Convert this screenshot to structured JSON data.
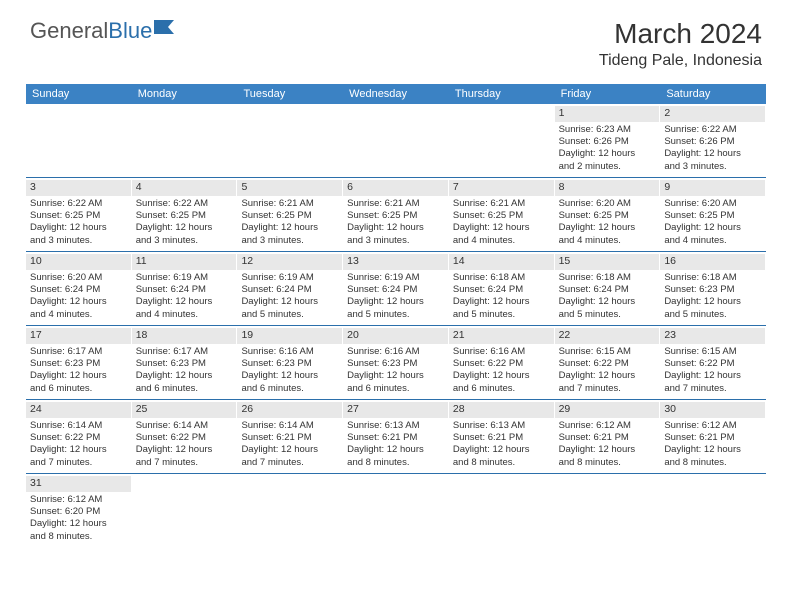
{
  "logo": {
    "text1": "General",
    "text2": "Blue"
  },
  "title": "March 2024",
  "location": "Tideng Pale, Indonesia",
  "colors": {
    "header_bg": "#3b82c4",
    "header_text": "#ffffff",
    "row_divider": "#2b6fab",
    "daynum_bg": "#e8e8e8",
    "text": "#333333",
    "logo_gray": "#555555",
    "logo_blue": "#2b6fab"
  },
  "day_names": [
    "Sunday",
    "Monday",
    "Tuesday",
    "Wednesday",
    "Thursday",
    "Friday",
    "Saturday"
  ],
  "weeks": [
    [
      {
        "n": "",
        "sr": "",
        "ss": "",
        "dl1": "",
        "dl2": ""
      },
      {
        "n": "",
        "sr": "",
        "ss": "",
        "dl1": "",
        "dl2": ""
      },
      {
        "n": "",
        "sr": "",
        "ss": "",
        "dl1": "",
        "dl2": ""
      },
      {
        "n": "",
        "sr": "",
        "ss": "",
        "dl1": "",
        "dl2": ""
      },
      {
        "n": "",
        "sr": "",
        "ss": "",
        "dl1": "",
        "dl2": ""
      },
      {
        "n": "1",
        "sr": "Sunrise: 6:23 AM",
        "ss": "Sunset: 6:26 PM",
        "dl1": "Daylight: 12 hours",
        "dl2": "and 2 minutes."
      },
      {
        "n": "2",
        "sr": "Sunrise: 6:22 AM",
        "ss": "Sunset: 6:26 PM",
        "dl1": "Daylight: 12 hours",
        "dl2": "and 3 minutes."
      }
    ],
    [
      {
        "n": "3",
        "sr": "Sunrise: 6:22 AM",
        "ss": "Sunset: 6:25 PM",
        "dl1": "Daylight: 12 hours",
        "dl2": "and 3 minutes."
      },
      {
        "n": "4",
        "sr": "Sunrise: 6:22 AM",
        "ss": "Sunset: 6:25 PM",
        "dl1": "Daylight: 12 hours",
        "dl2": "and 3 minutes."
      },
      {
        "n": "5",
        "sr": "Sunrise: 6:21 AM",
        "ss": "Sunset: 6:25 PM",
        "dl1": "Daylight: 12 hours",
        "dl2": "and 3 minutes."
      },
      {
        "n": "6",
        "sr": "Sunrise: 6:21 AM",
        "ss": "Sunset: 6:25 PM",
        "dl1": "Daylight: 12 hours",
        "dl2": "and 3 minutes."
      },
      {
        "n": "7",
        "sr": "Sunrise: 6:21 AM",
        "ss": "Sunset: 6:25 PM",
        "dl1": "Daylight: 12 hours",
        "dl2": "and 4 minutes."
      },
      {
        "n": "8",
        "sr": "Sunrise: 6:20 AM",
        "ss": "Sunset: 6:25 PM",
        "dl1": "Daylight: 12 hours",
        "dl2": "and 4 minutes."
      },
      {
        "n": "9",
        "sr": "Sunrise: 6:20 AM",
        "ss": "Sunset: 6:25 PM",
        "dl1": "Daylight: 12 hours",
        "dl2": "and 4 minutes."
      }
    ],
    [
      {
        "n": "10",
        "sr": "Sunrise: 6:20 AM",
        "ss": "Sunset: 6:24 PM",
        "dl1": "Daylight: 12 hours",
        "dl2": "and 4 minutes."
      },
      {
        "n": "11",
        "sr": "Sunrise: 6:19 AM",
        "ss": "Sunset: 6:24 PM",
        "dl1": "Daylight: 12 hours",
        "dl2": "and 4 minutes."
      },
      {
        "n": "12",
        "sr": "Sunrise: 6:19 AM",
        "ss": "Sunset: 6:24 PM",
        "dl1": "Daylight: 12 hours",
        "dl2": "and 5 minutes."
      },
      {
        "n": "13",
        "sr": "Sunrise: 6:19 AM",
        "ss": "Sunset: 6:24 PM",
        "dl1": "Daylight: 12 hours",
        "dl2": "and 5 minutes."
      },
      {
        "n": "14",
        "sr": "Sunrise: 6:18 AM",
        "ss": "Sunset: 6:24 PM",
        "dl1": "Daylight: 12 hours",
        "dl2": "and 5 minutes."
      },
      {
        "n": "15",
        "sr": "Sunrise: 6:18 AM",
        "ss": "Sunset: 6:24 PM",
        "dl1": "Daylight: 12 hours",
        "dl2": "and 5 minutes."
      },
      {
        "n": "16",
        "sr": "Sunrise: 6:18 AM",
        "ss": "Sunset: 6:23 PM",
        "dl1": "Daylight: 12 hours",
        "dl2": "and 5 minutes."
      }
    ],
    [
      {
        "n": "17",
        "sr": "Sunrise: 6:17 AM",
        "ss": "Sunset: 6:23 PM",
        "dl1": "Daylight: 12 hours",
        "dl2": "and 6 minutes."
      },
      {
        "n": "18",
        "sr": "Sunrise: 6:17 AM",
        "ss": "Sunset: 6:23 PM",
        "dl1": "Daylight: 12 hours",
        "dl2": "and 6 minutes."
      },
      {
        "n": "19",
        "sr": "Sunrise: 6:16 AM",
        "ss": "Sunset: 6:23 PM",
        "dl1": "Daylight: 12 hours",
        "dl2": "and 6 minutes."
      },
      {
        "n": "20",
        "sr": "Sunrise: 6:16 AM",
        "ss": "Sunset: 6:23 PM",
        "dl1": "Daylight: 12 hours",
        "dl2": "and 6 minutes."
      },
      {
        "n": "21",
        "sr": "Sunrise: 6:16 AM",
        "ss": "Sunset: 6:22 PM",
        "dl1": "Daylight: 12 hours",
        "dl2": "and 6 minutes."
      },
      {
        "n": "22",
        "sr": "Sunrise: 6:15 AM",
        "ss": "Sunset: 6:22 PM",
        "dl1": "Daylight: 12 hours",
        "dl2": "and 7 minutes."
      },
      {
        "n": "23",
        "sr": "Sunrise: 6:15 AM",
        "ss": "Sunset: 6:22 PM",
        "dl1": "Daylight: 12 hours",
        "dl2": "and 7 minutes."
      }
    ],
    [
      {
        "n": "24",
        "sr": "Sunrise: 6:14 AM",
        "ss": "Sunset: 6:22 PM",
        "dl1": "Daylight: 12 hours",
        "dl2": "and 7 minutes."
      },
      {
        "n": "25",
        "sr": "Sunrise: 6:14 AM",
        "ss": "Sunset: 6:22 PM",
        "dl1": "Daylight: 12 hours",
        "dl2": "and 7 minutes."
      },
      {
        "n": "26",
        "sr": "Sunrise: 6:14 AM",
        "ss": "Sunset: 6:21 PM",
        "dl1": "Daylight: 12 hours",
        "dl2": "and 7 minutes."
      },
      {
        "n": "27",
        "sr": "Sunrise: 6:13 AM",
        "ss": "Sunset: 6:21 PM",
        "dl1": "Daylight: 12 hours",
        "dl2": "and 8 minutes."
      },
      {
        "n": "28",
        "sr": "Sunrise: 6:13 AM",
        "ss": "Sunset: 6:21 PM",
        "dl1": "Daylight: 12 hours",
        "dl2": "and 8 minutes."
      },
      {
        "n": "29",
        "sr": "Sunrise: 6:12 AM",
        "ss": "Sunset: 6:21 PM",
        "dl1": "Daylight: 12 hours",
        "dl2": "and 8 minutes."
      },
      {
        "n": "30",
        "sr": "Sunrise: 6:12 AM",
        "ss": "Sunset: 6:21 PM",
        "dl1": "Daylight: 12 hours",
        "dl2": "and 8 minutes."
      }
    ],
    [
      {
        "n": "31",
        "sr": "Sunrise: 6:12 AM",
        "ss": "Sunset: 6:20 PM",
        "dl1": "Daylight: 12 hours",
        "dl2": "and 8 minutes."
      },
      {
        "n": "",
        "sr": "",
        "ss": "",
        "dl1": "",
        "dl2": ""
      },
      {
        "n": "",
        "sr": "",
        "ss": "",
        "dl1": "",
        "dl2": ""
      },
      {
        "n": "",
        "sr": "",
        "ss": "",
        "dl1": "",
        "dl2": ""
      },
      {
        "n": "",
        "sr": "",
        "ss": "",
        "dl1": "",
        "dl2": ""
      },
      {
        "n": "",
        "sr": "",
        "ss": "",
        "dl1": "",
        "dl2": ""
      },
      {
        "n": "",
        "sr": "",
        "ss": "",
        "dl1": "",
        "dl2": ""
      }
    ]
  ]
}
